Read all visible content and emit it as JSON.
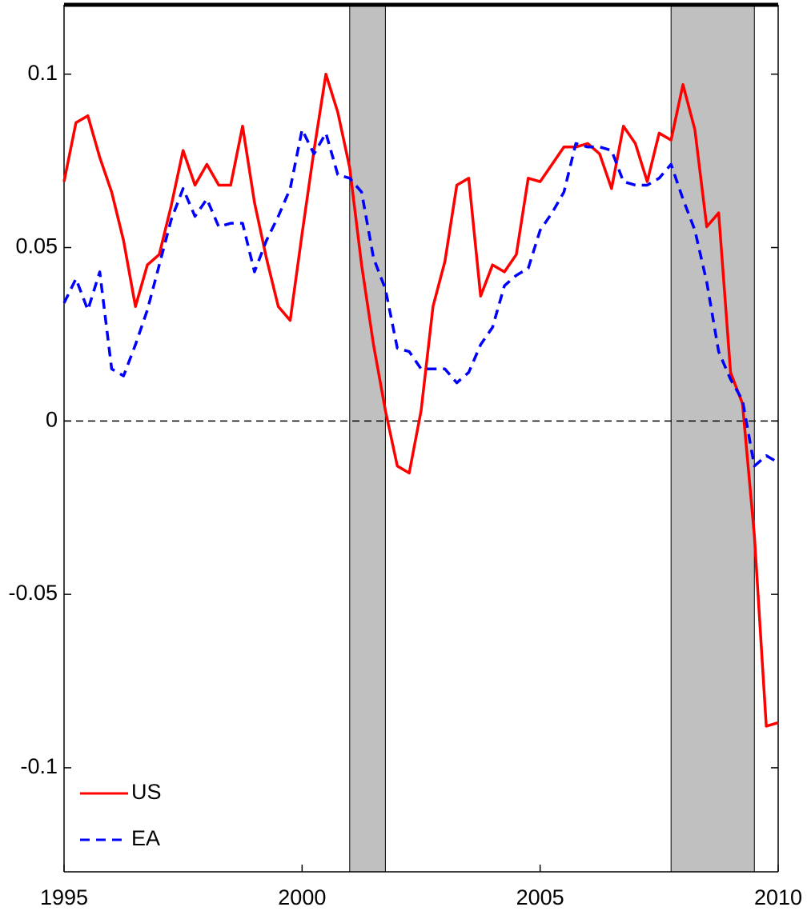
{
  "chart_data": {
    "type": "line",
    "x": [
      1995,
      1995.25,
      1995.5,
      1995.75,
      1996,
      1996.25,
      1996.5,
      1996.75,
      1997,
      1997.25,
      1997.5,
      1997.75,
      1998,
      1998.25,
      1998.5,
      1998.75,
      1999,
      1999.25,
      1999.5,
      1999.75,
      2000,
      2000.25,
      2000.5,
      2000.75,
      2001,
      2001.25,
      2001.5,
      2001.75,
      2002,
      2002.25,
      2002.5,
      2002.75,
      2003,
      2003.25,
      2003.5,
      2003.75,
      2004,
      2004.25,
      2004.5,
      2004.75,
      2005,
      2005.25,
      2005.5,
      2005.75,
      2006,
      2006.25,
      2006.5,
      2006.75,
      2007,
      2007.25,
      2007.5,
      2007.75,
      2008,
      2008.25,
      2008.5,
      2008.75,
      2009,
      2009.25,
      2009.5,
      2009.75,
      2010
    ],
    "series": [
      {
        "name": "US",
        "color": "#ff0000",
        "dash": false,
        "values": [
          0.069,
          0.086,
          0.088,
          0.076,
          0.066,
          0.052,
          0.033,
          0.045,
          0.048,
          0.062,
          0.078,
          0.068,
          0.074,
          0.068,
          0.068,
          0.085,
          0.063,
          0.047,
          0.033,
          0.029,
          0.054,
          0.078,
          0.1,
          0.089,
          0.073,
          0.045,
          0.022,
          0.003,
          -0.013,
          -0.015,
          0.003,
          0.033,
          0.046,
          0.068,
          0.07,
          0.036,
          0.045,
          0.043,
          0.048,
          0.07,
          0.069,
          0.074,
          0.079,
          0.079,
          0.08,
          0.077,
          0.067,
          0.085,
          0.08,
          0.069,
          0.083,
          0.081,
          0.097,
          0.084,
          0.056,
          0.06,
          0.014,
          0.005,
          -0.033,
          -0.088,
          -0.087
        ]
      },
      {
        "name": "EA",
        "color": "#0000ff",
        "dash": true,
        "values": [
          0.034,
          0.041,
          0.032,
          0.043,
          0.015,
          0.013,
          0.022,
          0.032,
          0.045,
          0.058,
          0.067,
          0.059,
          0.064,
          0.056,
          0.057,
          0.057,
          0.043,
          0.052,
          0.059,
          0.067,
          0.084,
          0.077,
          0.083,
          0.071,
          0.07,
          0.066,
          0.047,
          0.038,
          0.021,
          0.02,
          0.015,
          0.015,
          0.015,
          0.011,
          0.014,
          0.022,
          0.027,
          0.039,
          0.042,
          0.044,
          0.055,
          0.06,
          0.066,
          0.08,
          0.079,
          0.079,
          0.078,
          0.069,
          0.068,
          0.068,
          0.07,
          0.074,
          0.064,
          0.055,
          0.04,
          0.02,
          0.012,
          0.006,
          -0.013,
          -0.01,
          -0.012
        ]
      }
    ],
    "shaded_periods": [
      [
        2001,
        2001.75
      ],
      [
        2007.75,
        2009.5
      ]
    ],
    "shade_color": "#c0c0c0",
    "reference_line": 0,
    "xlim": [
      1995,
      2010
    ],
    "xticks": [
      1995,
      2000,
      2005,
      2010
    ],
    "ylim": [
      -0.13,
      0.12
    ],
    "yticks": [
      -0.1,
      -0.05,
      0,
      0.05,
      0.1
    ],
    "legend": "lower left"
  }
}
